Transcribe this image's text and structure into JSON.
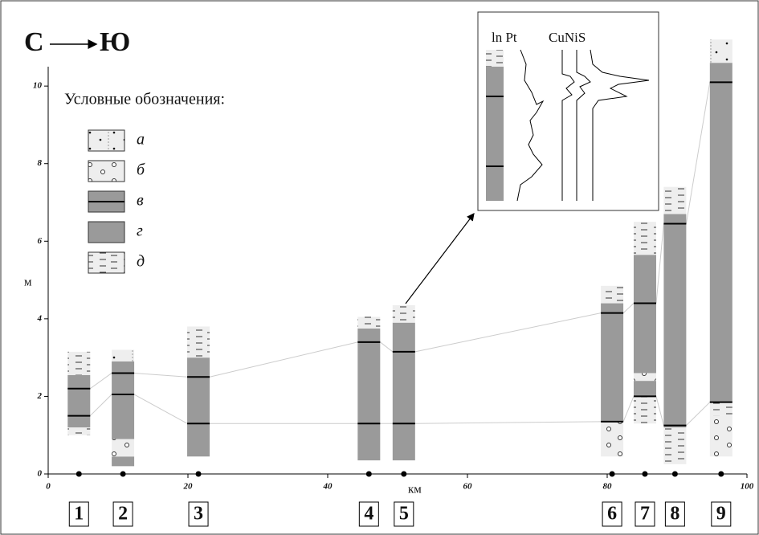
{
  "chart_data": {
    "type": "section",
    "title_from": "С",
    "title_to": "Ю",
    "x_label": "км",
    "y_label": "м",
    "xlim": [
      0,
      100
    ],
    "ylim": [
      0,
      10.5
    ],
    "xticks": [
      0,
      20,
      40,
      60,
      80,
      100
    ],
    "yticks": [
      0,
      2,
      4,
      6,
      8,
      10
    ],
    "legend_title": "Условные обозначения:",
    "legend": [
      {
        "key": "а",
        "label": "а"
      },
      {
        "key": "б",
        "label": "б"
      },
      {
        "key": "в",
        "label": "в"
      },
      {
        "key": "г",
        "label": "г"
      },
      {
        "key": "д",
        "label": "д"
      }
    ],
    "inset_labels": [
      "ln Pt",
      "CuNiS"
    ],
    "columns": [
      {
        "label": "1",
        "km": 4.4,
        "layers": [
          {
            "kind": "д",
            "from": 1.0,
            "to": 1.2
          },
          {
            "kind": "г",
            "from": 1.2,
            "to": 2.55
          },
          {
            "kind": "д",
            "from": 2.55,
            "to": 3.15
          }
        ],
        "lines": [
          1.5,
          2.2
        ]
      },
      {
        "label": "2",
        "km": 10.7,
        "layers": [
          {
            "kind": "г",
            "from": 0.2,
            "to": 0.45
          },
          {
            "kind": "б",
            "from": 0.45,
            "to": 0.9
          },
          {
            "kind": "г",
            "from": 0.9,
            "to": 2.9
          },
          {
            "kind": "а",
            "from": 2.9,
            "to": 3.2
          }
        ],
        "lines": [
          2.05,
          2.6
        ]
      },
      {
        "label": "3",
        "km": 21.5,
        "layers": [
          {
            "kind": "г",
            "from": 0.45,
            "to": 3.0
          },
          {
            "kind": "д",
            "from": 3.0,
            "to": 3.8
          }
        ],
        "lines": [
          1.3,
          2.5
        ]
      },
      {
        "label": "4",
        "km": 45.9,
        "layers": [
          {
            "kind": "г",
            "from": 0.35,
            "to": 3.75
          },
          {
            "kind": "д",
            "from": 3.75,
            "to": 4.05
          }
        ],
        "lines": [
          1.3,
          3.4
        ]
      },
      {
        "label": "5",
        "km": 50.9,
        "layers": [
          {
            "kind": "г",
            "from": 0.35,
            "to": 3.9
          },
          {
            "kind": "д",
            "from": 3.9,
            "to": 4.35
          }
        ],
        "lines": [
          1.3,
          3.15
        ]
      },
      {
        "label": "6",
        "km": 80.7,
        "layers": [
          {
            "kind": "б",
            "from": 0.45,
            "to": 1.35
          },
          {
            "kind": "г",
            "from": 1.35,
            "to": 4.4
          },
          {
            "kind": "д",
            "from": 4.4,
            "to": 4.85
          }
        ],
        "lines": [
          1.35,
          4.15
        ]
      },
      {
        "label": "7",
        "km": 85.4,
        "layers": [
          {
            "kind": "д",
            "from": 1.3,
            "to": 2.0
          },
          {
            "kind": "г",
            "from": 2.0,
            "to": 2.4
          },
          {
            "kind": "б",
            "from": 2.4,
            "to": 2.6
          },
          {
            "kind": "г",
            "from": 2.6,
            "to": 5.65
          },
          {
            "kind": "д",
            "from": 5.65,
            "to": 6.5
          }
        ],
        "lines": [
          2.0,
          4.4
        ]
      },
      {
        "label": "8",
        "km": 89.7,
        "layers": [
          {
            "kind": "д",
            "from": 0.25,
            "to": 1.2
          },
          {
            "kind": "г",
            "from": 1.2,
            "to": 6.7
          },
          {
            "kind": "д",
            "from": 6.7,
            "to": 7.4
          }
        ],
        "lines": [
          1.25,
          6.45
        ]
      },
      {
        "label": "9",
        "km": 96.3,
        "layers": [
          {
            "kind": "б",
            "from": 0.45,
            "to": 1.5
          },
          {
            "kind": "д",
            "from": 1.5,
            "to": 1.85
          },
          {
            "kind": "г",
            "from": 1.85,
            "to": 10.6
          },
          {
            "kind": "а",
            "from": 10.6,
            "to": 11.2
          }
        ],
        "lines": [
          1.85,
          10.1
        ]
      }
    ]
  }
}
